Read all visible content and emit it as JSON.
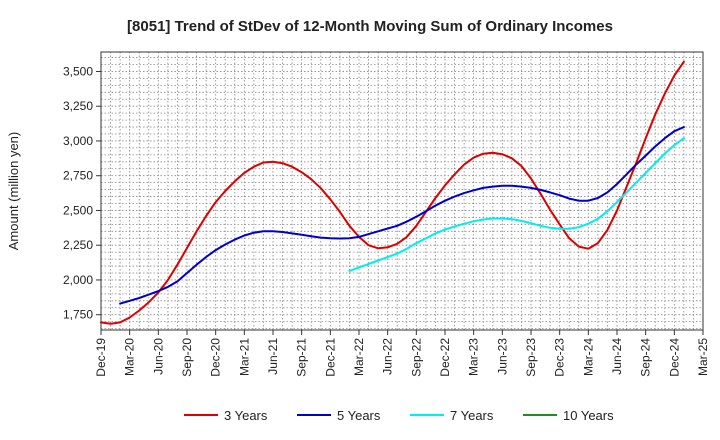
{
  "chart_data": {
    "type": "line",
    "title": "[8051]  Trend of StDev of 12-Month Moving Sum of Ordinary Incomes",
    "xlabel": "",
    "ylabel": "Amount (million yen)",
    "ylim": [
      1640,
      3640
    ],
    "y_ticks": [
      1750,
      2000,
      2250,
      2500,
      2750,
      3000,
      3250,
      3500
    ],
    "y_tick_labels": [
      "1,750",
      "2,000",
      "2,250",
      "2,500",
      "2,750",
      "3,000",
      "3,250",
      "3,500"
    ],
    "x_tick_labels": [
      "Dec-19",
      "Mar-20",
      "Jun-20",
      "Sep-20",
      "Dec-20",
      "Mar-21",
      "Jun-21",
      "Sep-21",
      "Dec-21",
      "Mar-22",
      "Jun-22",
      "Sep-22",
      "Dec-22",
      "Mar-23",
      "Jun-23",
      "Sep-23",
      "Dec-23",
      "Mar-24",
      "Jun-24",
      "Sep-24",
      "Dec-24",
      "Mar-25"
    ],
    "x_range_months": [
      0,
      63
    ],
    "grid": true,
    "legend_position": "bottom",
    "series": [
      {
        "name": "3 Years",
        "color": "#dd0000",
        "points": [
          [
            0,
            1695
          ],
          [
            1,
            1685
          ],
          [
            2,
            1695
          ],
          [
            3,
            1730
          ],
          [
            4,
            1780
          ],
          [
            5,
            1840
          ],
          [
            6,
            1910
          ],
          [
            7,
            2000
          ],
          [
            8,
            2110
          ],
          [
            9,
            2230
          ],
          [
            10,
            2350
          ],
          [
            11,
            2460
          ],
          [
            12,
            2560
          ],
          [
            13,
            2640
          ],
          [
            14,
            2710
          ],
          [
            15,
            2770
          ],
          [
            16,
            2815
          ],
          [
            17,
            2845
          ],
          [
            18,
            2850
          ],
          [
            19,
            2840
          ],
          [
            20,
            2815
          ],
          [
            21,
            2775
          ],
          [
            22,
            2725
          ],
          [
            23,
            2660
          ],
          [
            24,
            2580
          ],
          [
            25,
            2490
          ],
          [
            26,
            2390
          ],
          [
            27,
            2310
          ],
          [
            28,
            2250
          ],
          [
            29,
            2228
          ],
          [
            30,
            2235
          ],
          [
            31,
            2260
          ],
          [
            32,
            2310
          ],
          [
            33,
            2390
          ],
          [
            34,
            2490
          ],
          [
            35,
            2590
          ],
          [
            36,
            2680
          ],
          [
            37,
            2760
          ],
          [
            38,
            2830
          ],
          [
            39,
            2880
          ],
          [
            40,
            2908
          ],
          [
            41,
            2915
          ],
          [
            42,
            2905
          ],
          [
            43,
            2875
          ],
          [
            44,
            2820
          ],
          [
            45,
            2730
          ],
          [
            46,
            2620
          ],
          [
            47,
            2505
          ],
          [
            48,
            2400
          ],
          [
            49,
            2300
          ],
          [
            50,
            2240
          ],
          [
            51,
            2225
          ],
          [
            52,
            2265
          ],
          [
            53,
            2360
          ],
          [
            54,
            2500
          ],
          [
            55,
            2670
          ],
          [
            56,
            2840
          ],
          [
            57,
            3020
          ],
          [
            58,
            3190
          ],
          [
            59,
            3340
          ],
          [
            60,
            3470
          ],
          [
            61,
            3570
          ]
        ]
      },
      {
        "name": "5 Years",
        "color": "#0000cc",
        "points": [
          [
            2,
            1830
          ],
          [
            3,
            1850
          ],
          [
            4,
            1870
          ],
          [
            5,
            1895
          ],
          [
            6,
            1920
          ],
          [
            7,
            1950
          ],
          [
            8,
            1990
          ],
          [
            9,
            2050
          ],
          [
            10,
            2110
          ],
          [
            11,
            2165
          ],
          [
            12,
            2215
          ],
          [
            13,
            2255
          ],
          [
            14,
            2290
          ],
          [
            15,
            2320
          ],
          [
            16,
            2340
          ],
          [
            17,
            2350
          ],
          [
            18,
            2350
          ],
          [
            19,
            2345
          ],
          [
            20,
            2335
          ],
          [
            21,
            2325
          ],
          [
            22,
            2315
          ],
          [
            23,
            2305
          ],
          [
            24,
            2300
          ],
          [
            25,
            2298
          ],
          [
            26,
            2300
          ],
          [
            27,
            2310
          ],
          [
            28,
            2330
          ],
          [
            29,
            2350
          ],
          [
            30,
            2370
          ],
          [
            31,
            2390
          ],
          [
            32,
            2420
          ],
          [
            33,
            2455
          ],
          [
            34,
            2495
          ],
          [
            35,
            2535
          ],
          [
            36,
            2570
          ],
          [
            37,
            2600
          ],
          [
            38,
            2625
          ],
          [
            39,
            2645
          ],
          [
            40,
            2662
          ],
          [
            41,
            2672
          ],
          [
            42,
            2678
          ],
          [
            43,
            2678
          ],
          [
            44,
            2672
          ],
          [
            45,
            2662
          ],
          [
            46,
            2648
          ],
          [
            47,
            2630
          ],
          [
            48,
            2610
          ],
          [
            49,
            2585
          ],
          [
            50,
            2570
          ],
          [
            51,
            2570
          ],
          [
            52,
            2590
          ],
          [
            53,
            2630
          ],
          [
            54,
            2690
          ],
          [
            55,
            2760
          ],
          [
            56,
            2830
          ],
          [
            57,
            2895
          ],
          [
            58,
            2960
          ],
          [
            59,
            3020
          ],
          [
            60,
            3070
          ],
          [
            61,
            3100
          ]
        ]
      },
      {
        "name": "7 Years",
        "color": "#00eeee",
        "points": [
          [
            26,
            2065
          ],
          [
            27,
            2090
          ],
          [
            28,
            2115
          ],
          [
            29,
            2140
          ],
          [
            30,
            2165
          ],
          [
            31,
            2190
          ],
          [
            32,
            2225
          ],
          [
            33,
            2265
          ],
          [
            34,
            2300
          ],
          [
            35,
            2335
          ],
          [
            36,
            2362
          ],
          [
            37,
            2385
          ],
          [
            38,
            2405
          ],
          [
            39,
            2422
          ],
          [
            40,
            2435
          ],
          [
            41,
            2442
          ],
          [
            42,
            2442
          ],
          [
            43,
            2438
          ],
          [
            44,
            2425
          ],
          [
            45,
            2408
          ],
          [
            46,
            2390
          ],
          [
            47,
            2375
          ],
          [
            48,
            2368
          ],
          [
            49,
            2368
          ],
          [
            50,
            2380
          ],
          [
            51,
            2405
          ],
          [
            52,
            2440
          ],
          [
            53,
            2495
          ],
          [
            54,
            2560
          ],
          [
            55,
            2630
          ],
          [
            56,
            2700
          ],
          [
            57,
            2770
          ],
          [
            58,
            2840
          ],
          [
            59,
            2910
          ],
          [
            60,
            2970
          ],
          [
            61,
            3020
          ]
        ]
      },
      {
        "name": "10 Years",
        "color": "#228b22",
        "points": []
      }
    ]
  }
}
